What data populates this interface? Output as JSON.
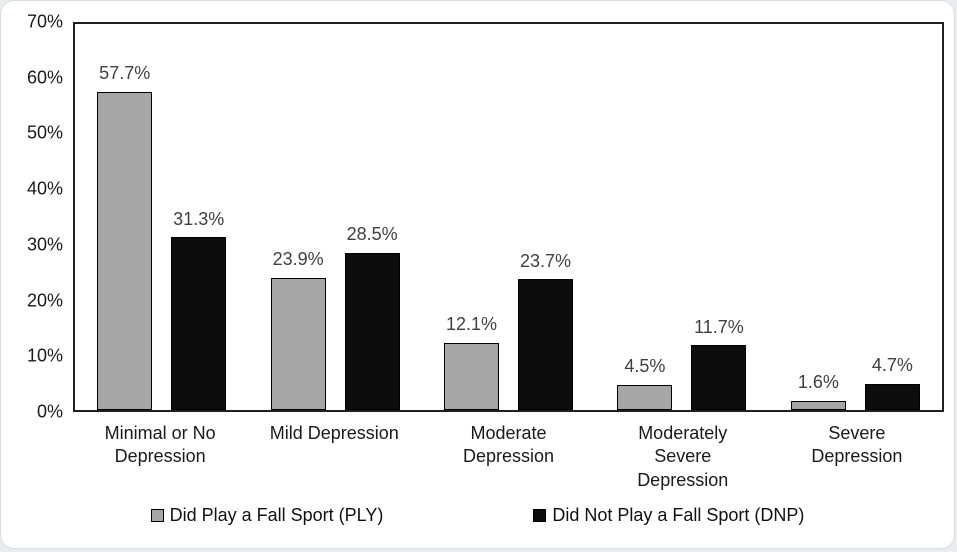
{
  "chart_data": {
    "type": "bar",
    "title": "",
    "xlabel": "",
    "ylabel": "",
    "categories": [
      "Minimal or No Depression",
      "Mild Depression",
      "Moderate Depression",
      "Moderately Severe Depression",
      "Severe Depression"
    ],
    "x_tick_display": [
      "Minimal or No\nDepression",
      "Mild Depression",
      "Moderate\nDepression",
      "Moderately\nSevere\nDepression",
      "Severe\nDepression"
    ],
    "series": [
      {
        "name": "Did Play a Fall Sport (PLY)",
        "color": "#a6a6a6",
        "border_color": "#000000",
        "values": [
          57.7,
          23.9,
          12.1,
          4.5,
          1.6
        ],
        "value_labels": [
          "57.7%",
          "23.9%",
          "12.1%",
          "4.5%",
          "1.6%"
        ]
      },
      {
        "name": "Did Not Play a Fall Sport (DNP)",
        "color": "#0d0d0d",
        "border_color": "#000000",
        "values": [
          31.3,
          28.5,
          23.7,
          11.7,
          4.7
        ],
        "value_labels": [
          "31.3%",
          "28.5%",
          "23.7%",
          "11.7%",
          "4.7%"
        ]
      }
    ],
    "ylim": [
      0,
      70
    ],
    "y_tick_values": [
      0,
      10,
      20,
      30,
      40,
      50,
      60,
      70
    ],
    "y_tick_labels": [
      "0%",
      "10%",
      "20%",
      "30%",
      "40%",
      "50%",
      "60%",
      "70%"
    ],
    "grid": false,
    "legend_position": "bottom",
    "value_label_color": "#404040",
    "plot_border_color": "#1f1f1f"
  }
}
